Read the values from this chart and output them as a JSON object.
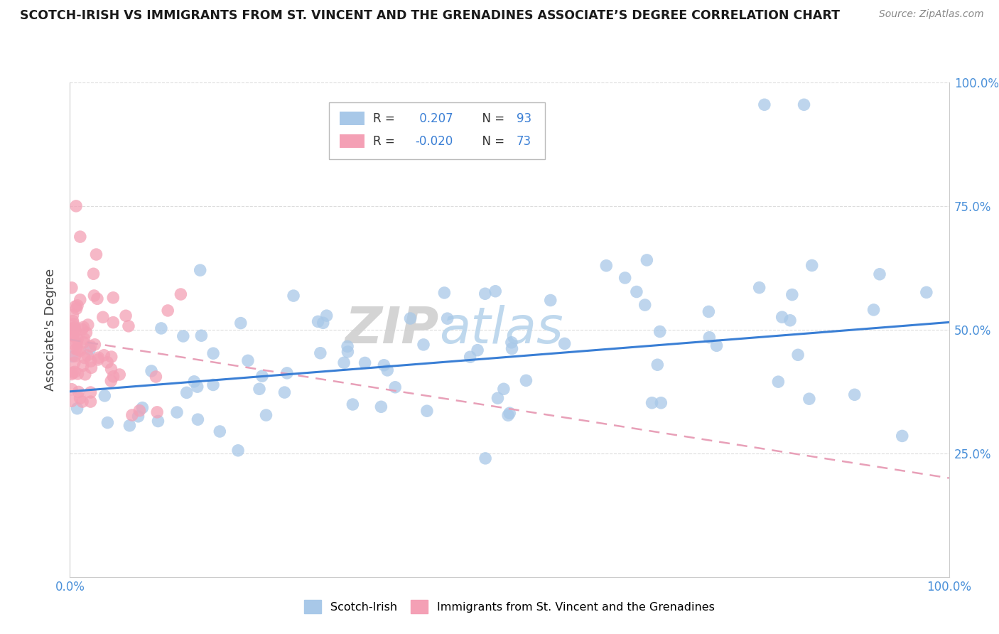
{
  "title": "SCOTCH-IRISH VS IMMIGRANTS FROM ST. VINCENT AND THE GRENADINES ASSOCIATE’S DEGREE CORRELATION CHART",
  "source": "Source: ZipAtlas.com",
  "ylabel": "Associate's Degree",
  "blue_color": "#a8c8e8",
  "pink_color": "#f4a0b5",
  "blue_line_color": "#3a7fd5",
  "pink_line_color": "#e8a0b8",
  "watermark_zip": "ZIP",
  "watermark_atlas": "atlas",
  "blue_r": 0.207,
  "pink_r": -0.02,
  "blue_n": 93,
  "pink_n": 73,
  "xlim": [
    0.0,
    1.0
  ],
  "ylim": [
    0.0,
    1.0
  ],
  "blue_intercept": 0.375,
  "blue_slope": 0.14,
  "pink_intercept": 0.48,
  "pink_slope": -0.28
}
